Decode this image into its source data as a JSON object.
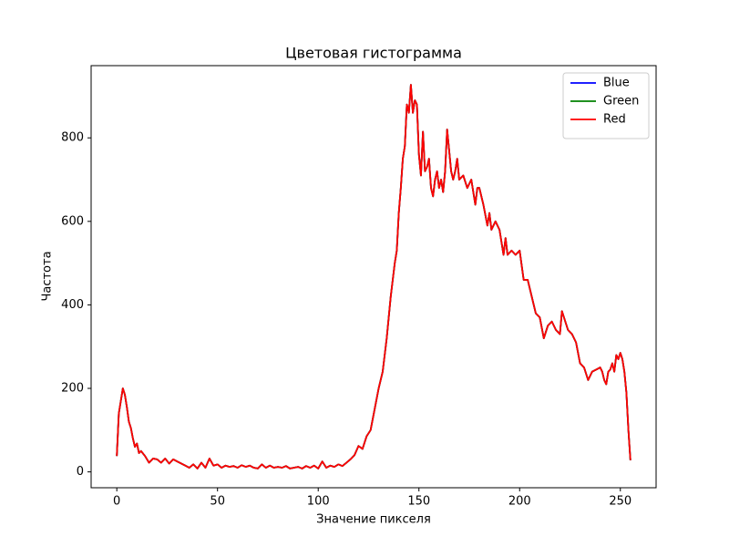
{
  "chart_data": {
    "type": "line",
    "title": "Цветовая гистограмма",
    "xlabel": "Значение пикселя",
    "ylabel": "Частота",
    "x": [
      0,
      1,
      2,
      3,
      4,
      5,
      6,
      7,
      8,
      9,
      10,
      11,
      12,
      14,
      16,
      18,
      20,
      22,
      24,
      26,
      28,
      30,
      32,
      34,
      36,
      38,
      40,
      42,
      44,
      46,
      48,
      50,
      52,
      54,
      56,
      58,
      60,
      62,
      64,
      66,
      68,
      70,
      72,
      74,
      76,
      78,
      80,
      82,
      84,
      86,
      88,
      90,
      92,
      94,
      96,
      98,
      100,
      102,
      104,
      106,
      108,
      110,
      112,
      114,
      116,
      118,
      120,
      122,
      124,
      126,
      128,
      130,
      132,
      134,
      136,
      137,
      138,
      139,
      140,
      141,
      142,
      143,
      144,
      145,
      146,
      147,
      148,
      149,
      150,
      151,
      152,
      153,
      154,
      155,
      156,
      157,
      158,
      159,
      160,
      161,
      162,
      163,
      164,
      165,
      166,
      167,
      168,
      169,
      170,
      172,
      174,
      176,
      178,
      179,
      180,
      182,
      184,
      185,
      186,
      188,
      190,
      192,
      193,
      194,
      196,
      198,
      200,
      202,
      204,
      206,
      208,
      210,
      212,
      214,
      216,
      218,
      220,
      221,
      222,
      224,
      226,
      228,
      230,
      232,
      234,
      236,
      238,
      240,
      241,
      242,
      243,
      244,
      245,
      246,
      247,
      248,
      249,
      250,
      251,
      252,
      253,
      254,
      255
    ],
    "series": [
      {
        "name": "Blue",
        "color": "#0000ff",
        "values": [
          38,
          140,
          170,
          200,
          185,
          155,
          120,
          105,
          80,
          60,
          68,
          45,
          50,
          38,
          22,
          32,
          30,
          22,
          32,
          20,
          30,
          25,
          20,
          15,
          10,
          18,
          8,
          22,
          10,
          32,
          15,
          18,
          10,
          15,
          12,
          14,
          10,
          16,
          12,
          15,
          10,
          8,
          18,
          10,
          15,
          10,
          12,
          10,
          14,
          8,
          10,
          12,
          8,
          14,
          10,
          15,
          8,
          25,
          10,
          15,
          12,
          18,
          14,
          22,
          30,
          40,
          62,
          55,
          85,
          100,
          150,
          200,
          240,
          320,
          420,
          460,
          500,
          530,
          620,
          680,
          750,
          780,
          880,
          860,
          927,
          860,
          890,
          880,
          760,
          710,
          815,
          720,
          730,
          750,
          680,
          660,
          700,
          720,
          680,
          700,
          670,
          720,
          820,
          770,
          720,
          700,
          720,
          750,
          700,
          710,
          680,
          700,
          640,
          680,
          680,
          640,
          590,
          620,
          580,
          600,
          580,
          520,
          560,
          520,
          530,
          520,
          530,
          460,
          460,
          420,
          380,
          370,
          320,
          350,
          360,
          340,
          330,
          385,
          370,
          340,
          330,
          310,
          260,
          250,
          220,
          240,
          245,
          250,
          240,
          220,
          210,
          240,
          245,
          260,
          240,
          280,
          270,
          285,
          270,
          240,
          190,
          100,
          28
        ]
      },
      {
        "name": "Green",
        "color": "#008000",
        "values": [
          38,
          140,
          170,
          200,
          185,
          155,
          120,
          105,
          80,
          60,
          68,
          45,
          50,
          38,
          22,
          32,
          30,
          22,
          32,
          20,
          30,
          25,
          20,
          15,
          10,
          18,
          8,
          22,
          10,
          32,
          15,
          18,
          10,
          15,
          12,
          14,
          10,
          16,
          12,
          15,
          10,
          8,
          18,
          10,
          15,
          10,
          12,
          10,
          14,
          8,
          10,
          12,
          8,
          14,
          10,
          15,
          8,
          25,
          10,
          15,
          12,
          18,
          14,
          22,
          30,
          40,
          62,
          55,
          85,
          100,
          150,
          200,
          240,
          320,
          420,
          460,
          500,
          530,
          620,
          680,
          750,
          780,
          880,
          860,
          927,
          860,
          890,
          880,
          760,
          710,
          815,
          720,
          730,
          750,
          680,
          660,
          700,
          720,
          680,
          700,
          670,
          720,
          820,
          770,
          720,
          700,
          720,
          750,
          700,
          710,
          680,
          700,
          640,
          680,
          680,
          640,
          590,
          620,
          580,
          600,
          580,
          520,
          560,
          520,
          530,
          520,
          530,
          460,
          460,
          420,
          380,
          370,
          320,
          350,
          360,
          340,
          330,
          385,
          370,
          340,
          330,
          310,
          260,
          250,
          220,
          240,
          245,
          250,
          240,
          220,
          210,
          240,
          245,
          260,
          240,
          280,
          270,
          285,
          270,
          240,
          190,
          100,
          28
        ]
      },
      {
        "name": "Red",
        "color": "#ff0000",
        "values": [
          38,
          140,
          170,
          200,
          185,
          155,
          120,
          105,
          80,
          60,
          68,
          45,
          50,
          38,
          22,
          32,
          30,
          22,
          32,
          20,
          30,
          25,
          20,
          15,
          10,
          18,
          8,
          22,
          10,
          32,
          15,
          18,
          10,
          15,
          12,
          14,
          10,
          16,
          12,
          15,
          10,
          8,
          18,
          10,
          15,
          10,
          12,
          10,
          14,
          8,
          10,
          12,
          8,
          14,
          10,
          15,
          8,
          25,
          10,
          15,
          12,
          18,
          14,
          22,
          30,
          40,
          62,
          55,
          85,
          100,
          150,
          200,
          240,
          320,
          420,
          460,
          500,
          530,
          620,
          680,
          750,
          780,
          880,
          860,
          927,
          860,
          890,
          880,
          760,
          710,
          815,
          720,
          730,
          750,
          680,
          660,
          700,
          720,
          680,
          700,
          670,
          720,
          820,
          770,
          720,
          700,
          720,
          750,
          700,
          710,
          680,
          700,
          640,
          680,
          680,
          640,
          590,
          620,
          580,
          600,
          580,
          520,
          560,
          520,
          530,
          520,
          530,
          460,
          460,
          420,
          380,
          370,
          320,
          350,
          360,
          340,
          330,
          385,
          370,
          340,
          330,
          310,
          260,
          250,
          220,
          240,
          245,
          250,
          240,
          220,
          210,
          240,
          245,
          260,
          240,
          280,
          270,
          285,
          270,
          240,
          190,
          100,
          28
        ]
      }
    ],
    "xlim": [
      -12.75,
      267.75
    ],
    "xticks": [
      0,
      50,
      100,
      150,
      200,
      250
    ],
    "ylim": [
      -38,
      973
    ],
    "yticks": [
      0,
      200,
      400,
      600,
      800
    ],
    "legend": "upper right",
    "grid": false
  }
}
